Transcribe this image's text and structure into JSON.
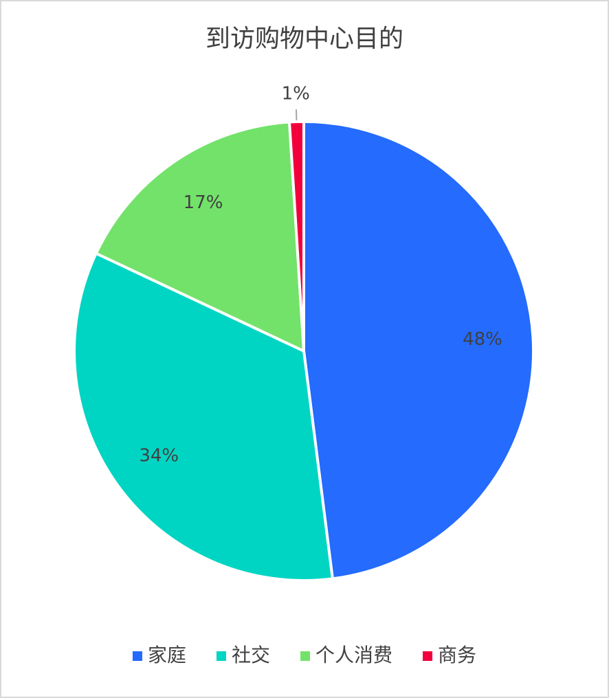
{
  "chart_data": {
    "type": "pie",
    "title": "到访购物中心目的",
    "categories": [
      "家庭",
      "社交",
      "个人消费",
      "商务"
    ],
    "values": [
      48,
      34,
      17,
      1
    ],
    "value_labels": [
      "48%",
      "34%",
      "17%",
      "1%"
    ],
    "colors": [
      "#246bfe",
      "#00d5c3",
      "#73e26a",
      "#f2003c"
    ],
    "legend": "bottom"
  }
}
